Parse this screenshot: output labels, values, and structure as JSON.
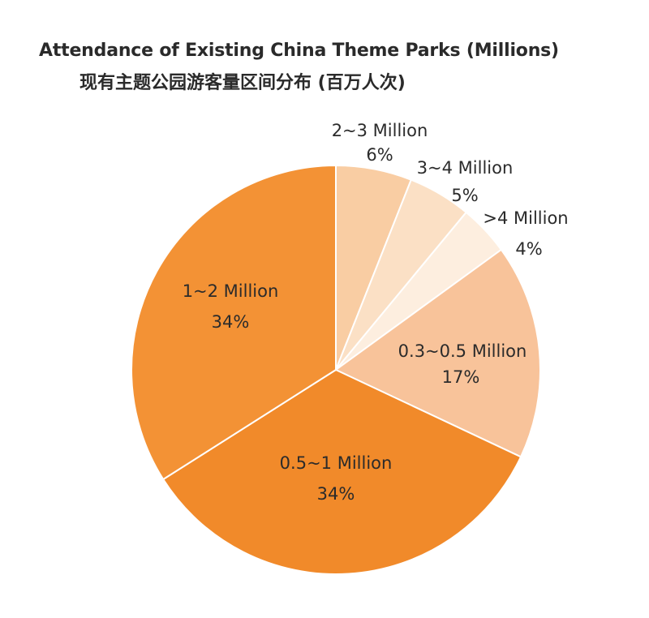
{
  "title": "Attendance of Existing China Theme Parks (Millions)",
  "subtitle": "现有主题公园游客量区间分布 (百万人次)",
  "chart_data": {
    "type": "pie",
    "title": "Attendance of Existing China Theme Parks (Millions)",
    "subtitle": "现有主题公园游客量区间分布 (百万人次)",
    "legend": "none",
    "slices": [
      {
        "label": "2~3 Million",
        "percent_label": "6%",
        "value": 6,
        "color": "#f9cda3"
      },
      {
        "label": "3~4 Million",
        "percent_label": "5%",
        "value": 5,
        "color": "#fbe0c5"
      },
      {
        "label": ">4 Million",
        "percent_label": "4%",
        "value": 4,
        "color": "#fdeedf"
      },
      {
        "label": "0.3~0.5 Million",
        "percent_label": "17%",
        "value": 17,
        "color": "#f8c39a"
      },
      {
        "label": "0.5~1 Million",
        "percent_label": "34%",
        "value": 34,
        "color": "#f18a2a"
      },
      {
        "label": "1~2 Million",
        "percent_label": "34%",
        "value": 34,
        "color": "#f39235"
      }
    ]
  }
}
